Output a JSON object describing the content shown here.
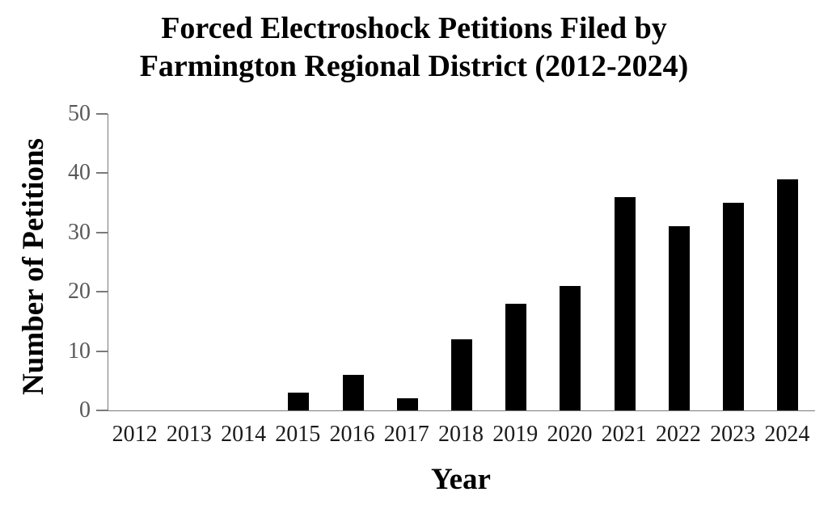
{
  "chart_data": {
    "type": "bar",
    "title": "Forced Electroshock Petitions Filed by Farmington Regional District (2012-2024)",
    "title_lines": [
      "Forced Electroshock Petitions Filed by",
      "Farmington Regional District (2012-2024)"
    ],
    "xlabel": "Year",
    "ylabel": "Number of Petitions",
    "categories": [
      "2012",
      "2013",
      "2014",
      "2015",
      "2016",
      "2017",
      "2018",
      "2019",
      "2020",
      "2021",
      "2022",
      "2023",
      "2024"
    ],
    "values": [
      0,
      0,
      0,
      3,
      6,
      2,
      12,
      18,
      21,
      36,
      31,
      35,
      39
    ],
    "ylim": [
      0,
      50
    ],
    "yticks": [
      "0",
      "10",
      "20",
      "30",
      "40",
      "50"
    ],
    "grid": false,
    "legend_position": "none",
    "colors": {
      "bar": "#000000",
      "axis_line": "#7a7a7a",
      "y_tick_label": "#595959",
      "x_tick_label": "#1a1a1a",
      "title": "#000000"
    }
  }
}
